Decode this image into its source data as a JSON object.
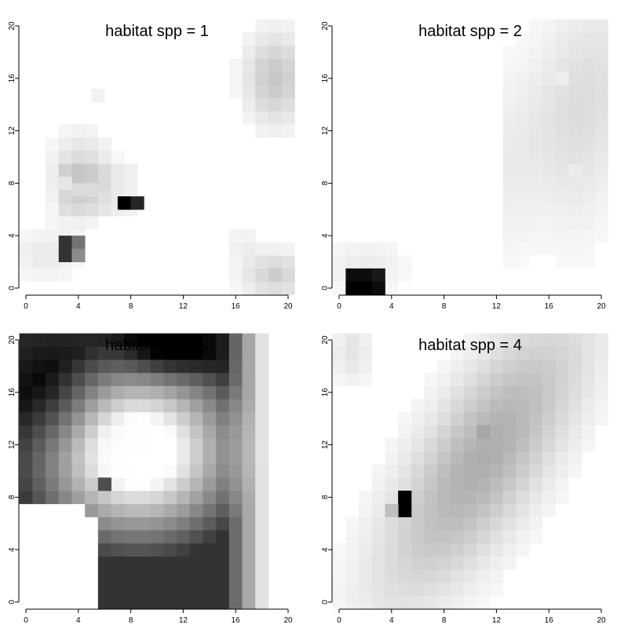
{
  "chart_data": [
    {
      "type": "heatmap",
      "title": "habitat spp = 1",
      "xlim": [
        0,
        20
      ],
      "ylim": [
        0,
        20
      ],
      "x_ticks": [
        0,
        4,
        8,
        12,
        16,
        20
      ],
      "y_ticks": [
        0,
        4,
        8,
        12,
        16,
        20
      ],
      "color_scale": "white-to-black (high values dark)",
      "grid": [
        [
          0.0,
          0.0,
          0.0,
          0.0,
          0.0,
          0.0,
          0.0,
          0.0,
          0.0,
          0.0,
          0.0,
          0.0,
          0.0,
          0.0,
          0.0,
          0.0,
          0.0,
          0.0,
          0.0,
          0.0,
          0.05
        ],
        [
          0.0,
          0.0,
          0.0,
          0.0,
          0.0,
          0.0,
          0.0,
          0.0,
          0.0,
          0.0,
          0.0,
          0.0,
          0.0,
          0.0,
          0.0,
          0.0,
          0.0,
          0.0,
          0.0,
          0.08,
          0.12
        ],
        [
          0.0,
          0.0,
          0.0,
          0.0,
          0.0,
          0.0,
          0.0,
          0.0,
          0.0,
          0.0,
          0.0,
          0.0,
          0.0,
          0.0,
          0.0,
          0.0,
          0.0,
          0.0,
          0.1,
          0.2,
          0.25
        ],
        [
          0.0,
          0.0,
          0.0,
          0.0,
          0.0,
          0.0,
          0.0,
          0.0,
          0.0,
          0.0,
          0.0,
          0.0,
          0.0,
          0.0,
          0.0,
          0.0,
          0.0,
          0.08,
          0.18,
          0.25,
          0.3
        ],
        [
          0.0,
          0.0,
          0.0,
          0.0,
          0.0,
          0.0,
          0.0,
          0.0,
          0.0,
          0.0,
          0.0,
          0.0,
          0.0,
          0.0,
          0.0,
          0.0,
          0.0,
          0.05,
          0.12,
          0.2,
          0.25
        ],
        [
          0.0,
          0.0,
          0.0,
          0.0,
          0.0,
          0.0,
          0.0,
          0.0,
          0.0,
          0.0,
          0.0,
          0.0,
          0.0,
          0.0,
          0.0,
          0.0,
          0.0,
          0.0,
          0.05,
          0.1,
          0.08
        ],
        [
          0.0,
          0.0,
          0.0,
          0.0,
          0.0,
          0.0,
          0.0,
          0.0,
          0.0,
          0.0,
          0.0,
          0.0,
          0.0,
          0.0,
          0.0,
          0.0,
          0.0,
          0.0,
          0.0,
          0.0,
          0.0
        ],
        [
          0.0,
          0.0,
          0.0,
          0.0,
          0.0,
          0.0,
          0.0,
          0.0,
          0.0,
          0.0,
          0.0,
          0.0,
          0.0,
          0.0,
          0.0,
          0.0,
          0.0,
          0.0,
          0.0,
          0.0,
          0.0
        ],
        [
          0.0,
          0.0,
          0.0,
          0.0,
          0.0,
          0.0,
          0.0,
          0.0,
          0.0,
          0.0,
          0.0,
          0.0,
          0.0,
          0.0,
          0.0,
          0.0,
          0.0,
          0.0,
          0.0,
          0.0,
          0.0
        ],
        [
          0.0,
          0.0,
          0.0,
          0.0,
          0.0,
          0.0,
          0.0,
          0.0,
          0.0,
          0.0,
          0.0,
          0.0,
          0.0,
          0.0,
          0.0,
          0.0,
          0.0,
          0.0,
          0.0,
          0.0,
          0.0
        ],
        [
          0.0,
          0.0,
          0.0,
          0.0,
          0.0,
          0.0,
          0.0,
          0.0,
          0.0,
          0.0,
          0.0,
          0.0,
          0.0,
          0.0,
          0.0,
          0.0,
          0.0,
          0.0,
          0.0,
          0.0,
          0.0
        ],
        [
          0.0,
          0.0,
          0.0,
          0.0,
          0.0,
          0.0,
          0.0,
          0.0,
          0.0,
          0.0,
          0.0,
          0.0,
          0.0,
          0.0,
          0.0,
          0.0,
          0.0,
          0.0,
          0.0,
          0.0,
          0.0
        ],
        [
          0.0,
          0.0,
          0.0,
          0.0,
          0.0,
          0.0,
          0.0,
          0.0,
          0.0,
          0.0,
          0.0,
          0.0,
          0.0,
          0.0,
          0.0,
          0.0,
          0.0,
          0.0,
          0.0,
          0.0,
          0.0
        ],
        [
          0.0,
          0.0,
          0.0,
          0.0,
          0.0,
          0.0,
          0.0,
          0.0,
          0.0,
          0.0,
          0.0,
          0.0,
          0.0,
          0.0,
          0.0,
          0.0,
          0.0,
          0.0,
          0.0,
          0.0,
          0.0
        ],
        [
          0.0,
          0.0,
          0.0,
          0.0,
          0.0,
          0.0,
          0.0,
          0.0,
          0.0,
          0.0,
          0.0,
          0.0,
          0.0,
          0.0,
          0.0,
          0.0,
          0.0,
          0.0,
          0.0,
          0.0,
          0.0
        ],
        [
          0.0,
          0.0,
          0.0,
          0.0,
          0.0,
          0.0,
          0.0,
          0.0,
          0.0,
          0.0,
          0.0,
          0.0,
          0.0,
          0.0,
          0.0,
          0.0,
          0.0,
          0.0,
          0.0,
          0.0,
          0.0
        ],
        [
          0.0,
          0.0,
          0.0,
          0.0,
          0.0,
          0.0,
          0.0,
          0.0,
          0.0,
          0.0,
          0.0,
          0.0,
          0.0,
          0.0,
          0.0,
          0.0,
          0.0,
          0.0,
          0.0,
          0.0,
          0.0
        ],
        [
          0.0,
          0.0,
          0.0,
          0.0,
          0.0,
          0.0,
          0.0,
          0.0,
          0.0,
          0.0,
          0.0,
          0.0,
          0.0,
          0.0,
          0.0,
          0.0,
          0.0,
          0.0,
          0.0,
          0.0,
          0.0
        ],
        [
          0.0,
          0.0,
          0.0,
          0.0,
          0.0,
          0.0,
          0.0,
          0.0,
          0.0,
          0.0,
          0.0,
          0.0,
          0.0,
          0.0,
          0.0,
          0.0,
          0.0,
          0.0,
          0.0,
          0.0,
          0.0
        ],
        [
          0.0,
          0.0,
          0.0,
          0.0,
          0.0,
          0.0,
          0.0,
          0.0,
          0.0,
          0.0,
          0.0,
          0.0,
          0.0,
          0.0,
          0.0,
          0.0,
          0.0,
          0.0,
          0.0,
          0.0,
          0.0
        ],
        [
          0.0,
          0.0,
          0.0,
          0.0,
          0.0,
          0.0,
          0.0,
          0.0,
          0.0,
          0.0,
          0.0,
          0.0,
          0.0,
          0.0,
          0.0,
          0.0,
          0.0,
          0.0,
          0.0,
          0.0,
          0.0
        ]
      ],
      "features": [
        {
          "x": 7.5,
          "y": 6.5,
          "value": 1.0
        },
        {
          "x": 8.5,
          "y": 6.5,
          "value": 0.85
        },
        {
          "x": 3,
          "y": 3.5,
          "value": 0.8
        },
        {
          "x": 4,
          "y": 3.5,
          "value": 0.55
        },
        {
          "x": 3,
          "y": 2.5,
          "value": 0.8
        },
        {
          "x": 4,
          "y": 2.5,
          "value": 0.45
        },
        {
          "x": 3,
          "y": 8,
          "value": 0.1
        },
        {
          "x": 4,
          "y": 7.5,
          "value": 0.14
        },
        {
          "x": 5,
          "y": 7.5,
          "value": 0.14
        },
        {
          "x": 19,
          "y": 1,
          "value": 0.2
        },
        {
          "x": 5.5,
          "y": 14.7,
          "value": 0.05
        }
      ]
    },
    {
      "type": "heatmap",
      "title": "habitat spp = 2",
      "xlim": [
        0,
        20
      ],
      "ylim": [
        0,
        20
      ],
      "x_ticks": [
        0,
        4,
        8,
        12,
        16,
        20
      ],
      "y_ticks": [
        0,
        4,
        8,
        12,
        16,
        20
      ],
      "color_scale": "white-to-black (high values dark)",
      "features": [
        {
          "x": 1,
          "y": 1,
          "value": 0.95
        },
        {
          "x": 2,
          "y": 1,
          "value": 0.95
        },
        {
          "x": 3,
          "y": 1,
          "value": 0.9
        },
        {
          "x": 1,
          "y": 0,
          "value": 1.0
        },
        {
          "x": 2,
          "y": 0,
          "value": 1.0
        },
        {
          "x": 3,
          "y": 0,
          "value": 0.95
        },
        {
          "x": 17,
          "y": 16,
          "value": 0.07
        },
        {
          "x": 18,
          "y": 9,
          "value": 0.08
        }
      ]
    },
    {
      "type": "heatmap",
      "title": "habitat spp = 3",
      "xlim": [
        0,
        20
      ],
      "ylim": [
        0,
        20
      ],
      "x_ticks": [
        0,
        4,
        8,
        12,
        16,
        20
      ],
      "y_ticks": [
        0,
        4,
        8,
        12,
        16,
        20
      ],
      "color_scale": "white-to-black (high values dark)",
      "features": [
        {
          "x": 11,
          "y": 19.5,
          "value": 1.0
        },
        {
          "x": 2,
          "y": 16,
          "value": 0.85
        },
        {
          "x": 6,
          "y": 9,
          "value": 0.7
        },
        {
          "x": 8,
          "y": 11,
          "value": 0.0
        }
      ]
    },
    {
      "type": "heatmap",
      "title": "habitat spp = 4",
      "xlim": [
        0,
        20
      ],
      "ylim": [
        0,
        20
      ],
      "x_ticks": [
        0,
        4,
        8,
        12,
        16,
        20
      ],
      "y_ticks": [
        0,
        4,
        8,
        12,
        16,
        20
      ],
      "color_scale": "white-to-black (high values dark)",
      "features": [
        {
          "x": 5,
          "y": 8,
          "value": 1.0
        },
        {
          "x": 5,
          "y": 7,
          "value": 1.0
        },
        {
          "x": 4,
          "y": 7,
          "value": 0.25
        },
        {
          "x": 11,
          "y": 13,
          "value": 0.35
        },
        {
          "x": 1,
          "y": 20,
          "value": 0.1
        }
      ]
    }
  ]
}
